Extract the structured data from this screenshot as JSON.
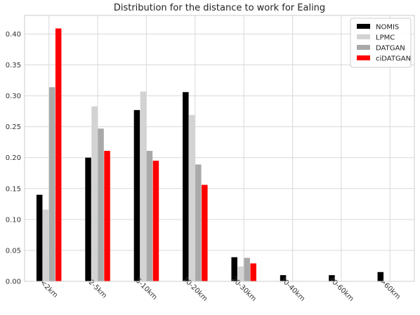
{
  "chart_data": {
    "type": "bar",
    "title": "Distribution for the distance to work for Ealing",
    "xlabel": "",
    "ylabel": "",
    "categories": [
      "<2km",
      "2-5km",
      "5-10km",
      "10-20km",
      "20-30km",
      "30-40km",
      "40-60km",
      ">60km"
    ],
    "series": [
      {
        "name": "NOMIS",
        "color": "#000000",
        "values": [
          0.14,
          0.2,
          0.277,
          0.306,
          0.039,
          0.01,
          0.01,
          0.015
        ]
      },
      {
        "name": "LPMC",
        "color": "#d3d3d3",
        "values": [
          0.116,
          0.283,
          0.307,
          0.269,
          0.024,
          0.0,
          0.0,
          0.0
        ]
      },
      {
        "name": "DATGAN",
        "color": "#a9a9a9",
        "values": [
          0.314,
          0.247,
          0.211,
          0.189,
          0.038,
          0.0,
          0.0,
          0.0
        ]
      },
      {
        "name": "ciDATGAN",
        "color": "#ff0000",
        "values": [
          0.409,
          0.211,
          0.195,
          0.156,
          0.029,
          0.0,
          0.0,
          0.0
        ]
      }
    ],
    "ylim": [
      0,
      0.43
    ],
    "yticks": [
      "0.00",
      "0.05",
      "0.10",
      "0.15",
      "0.20",
      "0.25",
      "0.30",
      "0.35",
      "0.40"
    ],
    "grid": true,
    "legend_position": "top-right"
  }
}
